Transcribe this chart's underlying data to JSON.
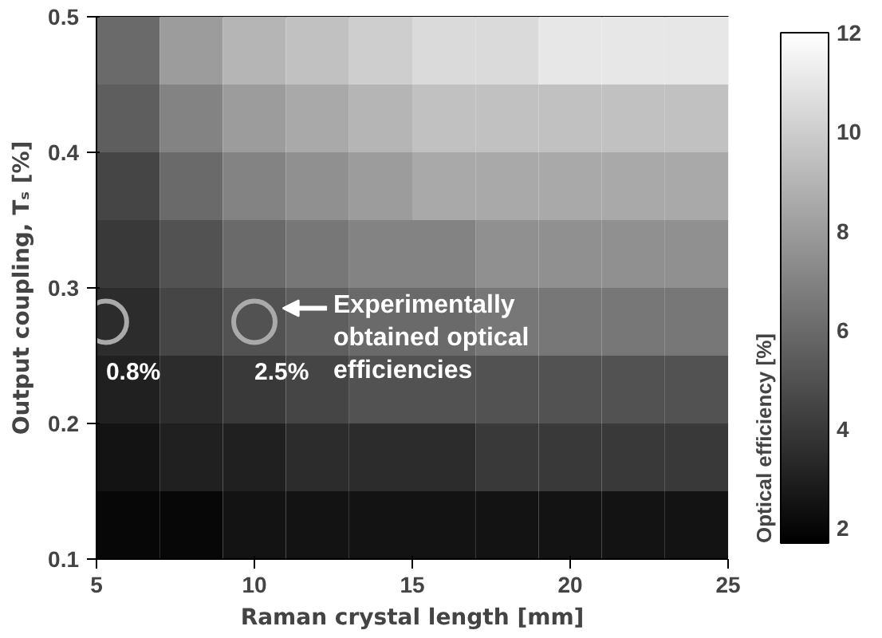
{
  "chart_data": {
    "type": "heatmap",
    "xlabel": "Raman crystal length [mm]",
    "ylabel": "Output coupling, Tₛ [%]",
    "clabel": "Optical efficiency [%]",
    "x": [
      6,
      8,
      10,
      12,
      14,
      16,
      18,
      20,
      22,
      24
    ],
    "y": [
      0.475,
      0.425,
      0.375,
      0.325,
      0.275,
      0.225,
      0.175,
      0.125
    ],
    "cells": [
      [
        6,
        8,
        9,
        9.5,
        10,
        10.5,
        10.5,
        11,
        11,
        11
      ],
      [
        5.5,
        7,
        8,
        8.5,
        9,
        9.5,
        9.5,
        9.5,
        9.5,
        9.5
      ],
      [
        4.5,
        6,
        7,
        7.5,
        8,
        8.5,
        8.5,
        8.5,
        8.5,
        8.5
      ],
      [
        4,
        5,
        6,
        6.5,
        7,
        7,
        7.5,
        7.5,
        7.5,
        7.5
      ],
      [
        3.5,
        4.5,
        5,
        5.5,
        6,
        6,
        6.5,
        6.5,
        6.5,
        6.5
      ],
      [
        3,
        3.5,
        4,
        4.5,
        5,
        5,
        5,
        5,
        5,
        5
      ],
      [
        2.5,
        3,
        3,
        3.5,
        3.5,
        3.5,
        4,
        4,
        4,
        4
      ],
      [
        2,
        2,
        2.5,
        2.5,
        2.5,
        2.5,
        2.5,
        2.5,
        2.5,
        2.5
      ]
    ],
    "xlim": [
      5,
      25
    ],
    "ylim": [
      0.1,
      0.5
    ],
    "xticks": [
      5,
      10,
      15,
      20,
      25
    ],
    "yticks": [
      0.1,
      0.2,
      0.3,
      0.4,
      0.5
    ],
    "clim": [
      1.7,
      12
    ],
    "cticks": [
      2,
      4,
      6,
      8,
      10,
      12
    ],
    "annotations": [
      {
        "text": "0.8%",
        "x": 5.3,
        "y": 0.275
      },
      {
        "text": "2.5%",
        "x": 10,
        "y": 0.275
      },
      "Experimentally obtained optical efficiencies"
    ]
  }
}
